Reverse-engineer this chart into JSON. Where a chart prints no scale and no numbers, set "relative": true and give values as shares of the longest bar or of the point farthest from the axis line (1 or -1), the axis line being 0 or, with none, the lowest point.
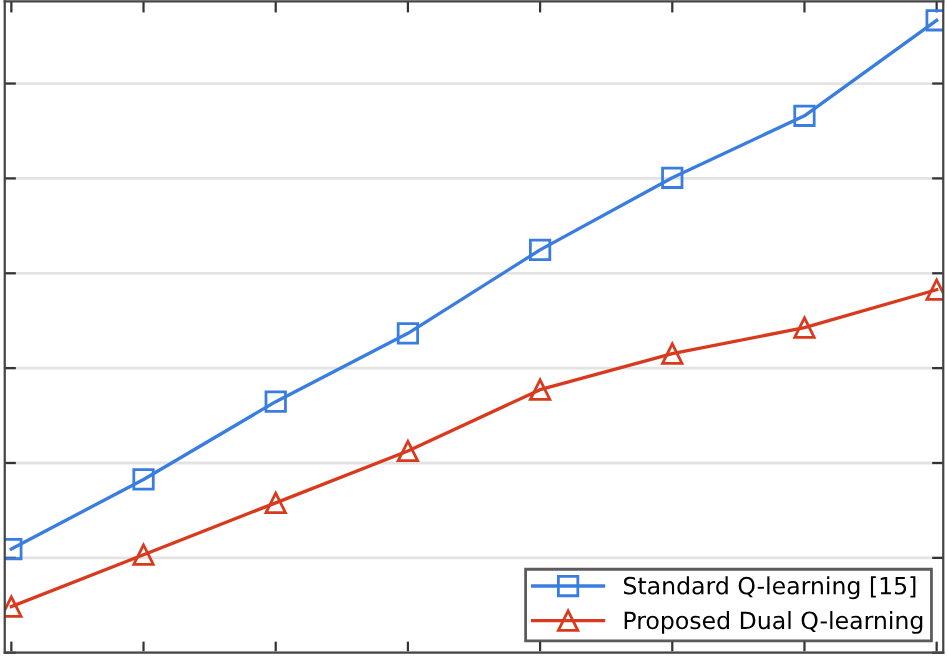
{
  "chart_data": {
    "type": "line",
    "relative": true,
    "grid": "y",
    "legend": "bottom right",
    "categories": [
      null,
      null,
      null,
      null,
      null,
      null,
      null,
      null
    ],
    "series": [
      {
        "name": "Standard Q-learning [15]",
        "color": "#3a7de0",
        "marker": "square",
        "values": [
          0.164,
          0.274,
          0.397,
          0.505,
          0.637,
          0.751,
          0.849,
          1
        ]
      },
      {
        "name": "Proposed Dual Q-learning",
        "color": "#d93a1e",
        "marker": "triangle",
        "values": [
          0.073,
          0.155,
          0.237,
          0.319,
          0.416,
          0.473,
          0.514,
          0.574
        ]
      }
    ]
  }
}
